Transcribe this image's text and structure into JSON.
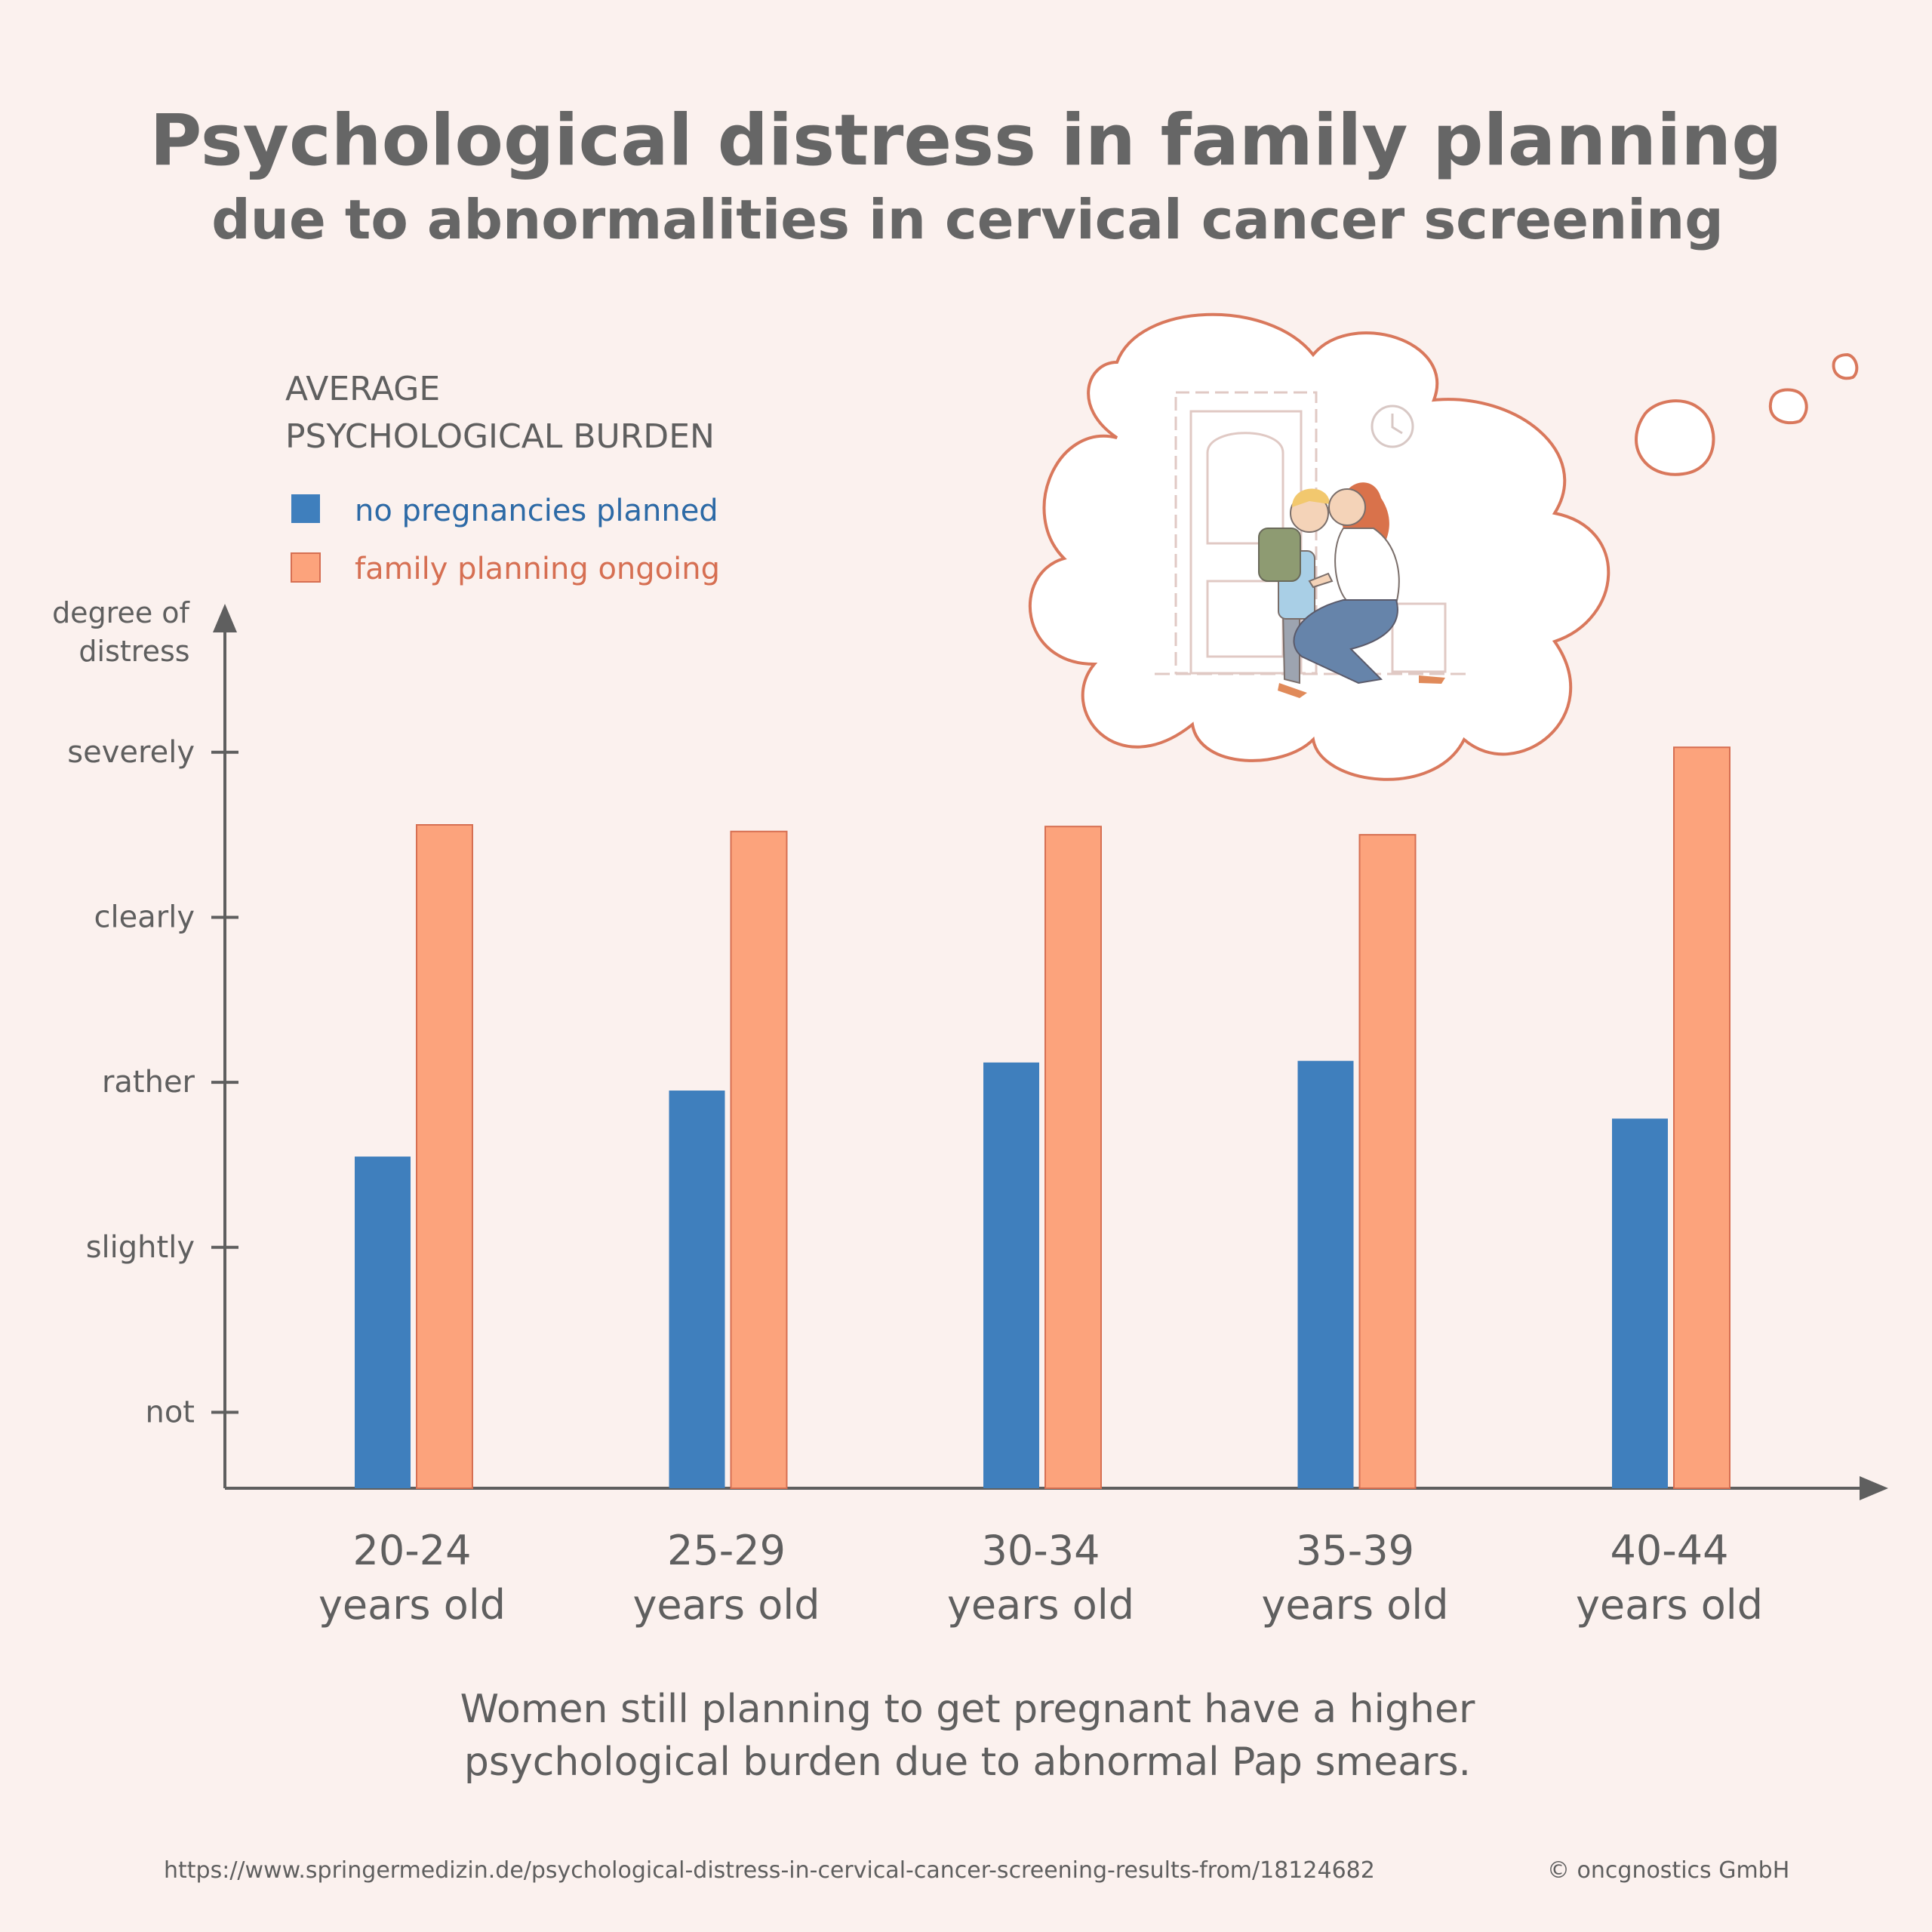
{
  "title": "Psychological distress in family planning",
  "subtitle": "due to abnormalities in cervical cancer screening",
  "legend": {
    "title_line1": "AVERAGE",
    "title_line2": "PSYCHOLOGICAL BURDEN",
    "items": [
      {
        "label": "no pregnancies planned",
        "color": "#3f7fbd"
      },
      {
        "label": "family planning ongoing",
        "color": "#fca37c"
      }
    ]
  },
  "y_axis": {
    "label_line1": "degree of",
    "label_line2": "distress"
  },
  "caption": {
    "line1": "Women still planning to get pregnant have a higher",
    "line2": "psychological burden due to abnormal Pap smears."
  },
  "footer": {
    "source": "https://www.springermedizin.de/psychological-distress-in-cervical-cancer-screening-results-from/18124682",
    "copyright": "© oncgnostics GmbH"
  },
  "colors": {
    "blue": "#3f7fbd",
    "orange": "#fca37c",
    "orange_stroke": "#d66f52",
    "axis": "#5f5f5f",
    "background": "#fbf1ee"
  },
  "chart_data": {
    "type": "bar",
    "title": "Psychological distress in family planning",
    "categories": [
      "20-24",
      "25-29",
      "30-34",
      "35-39",
      "40-44"
    ],
    "category_suffix": "years old",
    "ylabel": "degree of distress",
    "ylim": [
      -0.46,
      4.9
    ],
    "yticks": [
      0,
      1,
      2,
      3,
      4
    ],
    "ytick_labels": [
      "not",
      "slightly",
      "rather",
      "clearly",
      "severely"
    ],
    "series": [
      {
        "name": "no pregnancies planned",
        "values": [
          1.55,
          1.95,
          2.12,
          2.13,
          1.78
        ]
      },
      {
        "name": "family planning ongoing",
        "values": [
          3.56,
          3.52,
          3.55,
          3.5,
          4.03
        ]
      }
    ]
  }
}
